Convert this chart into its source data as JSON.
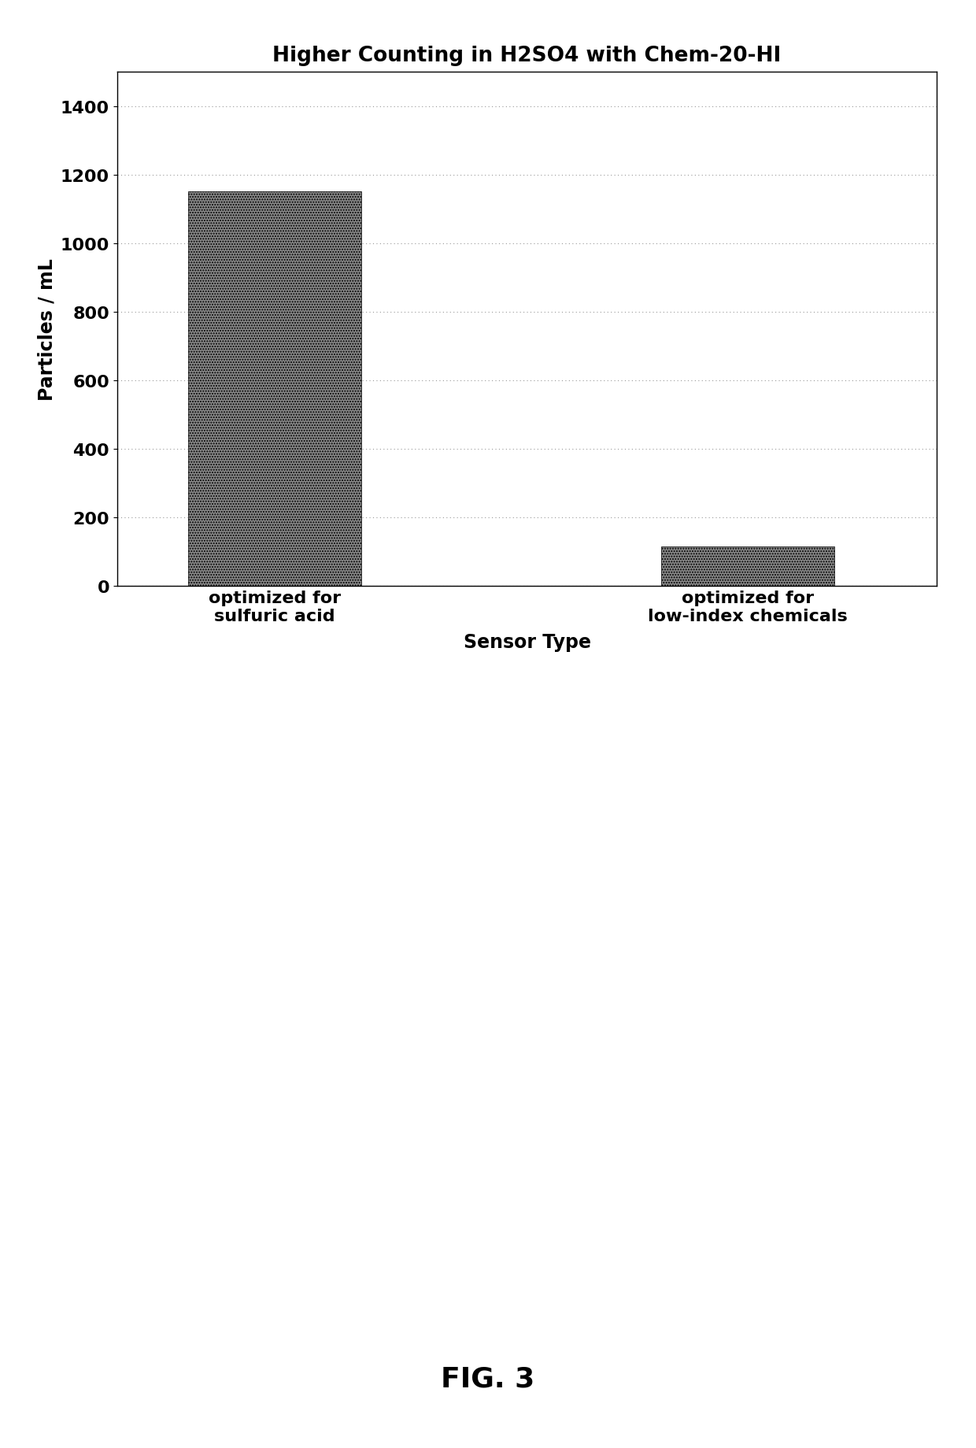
{
  "title": "Higher Counting in H2SO4 with Chem-20-HI",
  "categories": [
    "optimized for\nsulfuric acid",
    "optimized for\nlow-index chemicals"
  ],
  "values": [
    1150,
    115
  ],
  "bar_color": "#888888",
  "bar_edge_color": "#000000",
  "ylabel": "Particles / mL",
  "xlabel": "Sensor Type",
  "ylim": [
    0,
    1500
  ],
  "yticks": [
    0,
    200,
    400,
    600,
    800,
    1000,
    1200,
    1400
  ],
  "title_fontsize": 19,
  "axis_label_fontsize": 17,
  "tick_fontsize": 16,
  "xlabel_fontsize": 17,
  "fig_caption": "FIG. 3",
  "fig_caption_fontsize": 26,
  "background_color": "#ffffff",
  "grid_color": "#999999",
  "bar_width": 0.55
}
